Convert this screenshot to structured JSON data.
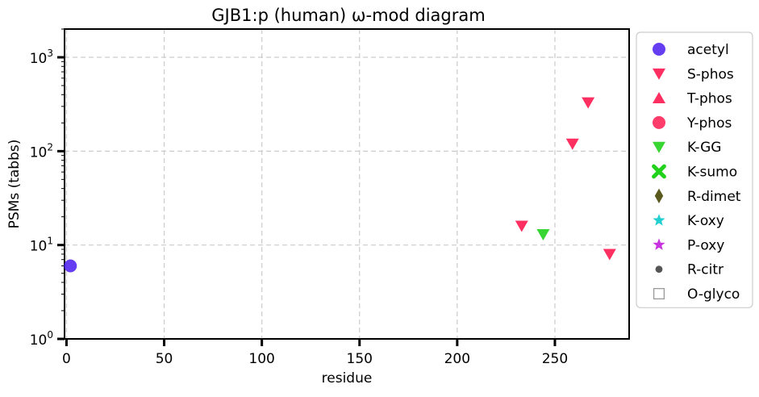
{
  "chart_data": {
    "type": "scatter",
    "title": "GJB1:p (human) ω-mod diagram",
    "xlabel": "residue",
    "ylabel": "PSMs (tabbs)",
    "xlim": [
      -1,
      288
    ],
    "xticks": [
      0,
      50,
      100,
      150,
      200,
      250
    ],
    "yscale": "log",
    "ylim": [
      1,
      2000
    ],
    "yticks": [
      {
        "value": 1,
        "base": "10",
        "exp": "0"
      },
      {
        "value": 10,
        "base": "10",
        "exp": "1"
      },
      {
        "value": 100,
        "base": "10",
        "exp": "2"
      },
      {
        "value": 1000,
        "base": "10",
        "exp": "3"
      }
    ],
    "grid": true,
    "legend_position": "outside-right",
    "series": [
      {
        "name": "acetyl",
        "marker": "circle",
        "color": "#4b1cf0",
        "points": [
          {
            "x": 2,
            "y": 6
          }
        ]
      },
      {
        "name": "S-phos",
        "marker": "triangle-down",
        "color": "#ff1a50",
        "points": [
          {
            "x": 233,
            "y": 16
          },
          {
            "x": 259,
            "y": 120
          },
          {
            "x": 267,
            "y": 330
          },
          {
            "x": 278,
            "y": 8
          }
        ]
      },
      {
        "name": "T-phos",
        "marker": "triangle-up",
        "color": "#ff1a50",
        "points": []
      },
      {
        "name": "Y-phos",
        "marker": "circle",
        "color": "#ff1a50",
        "points": []
      },
      {
        "name": "K-GG",
        "marker": "triangle-down",
        "color": "#22d11c",
        "points": [
          {
            "x": 244,
            "y": 13
          }
        ]
      },
      {
        "name": "K-sumo",
        "marker": "x",
        "color": "#22d11c",
        "points": []
      },
      {
        "name": "R-dimet",
        "marker": "diamond",
        "color": "#5a5a1e",
        "points": []
      },
      {
        "name": "K-oxy",
        "marker": "star",
        "color": "#22cfd0",
        "points": []
      },
      {
        "name": "P-oxy",
        "marker": "star",
        "color": "#c832e0",
        "points": []
      },
      {
        "name": "R-citr",
        "marker": "dot",
        "color": "#555555",
        "points": []
      },
      {
        "name": "O-glyco",
        "marker": "square-open",
        "color": "#999999",
        "points": []
      }
    ]
  }
}
